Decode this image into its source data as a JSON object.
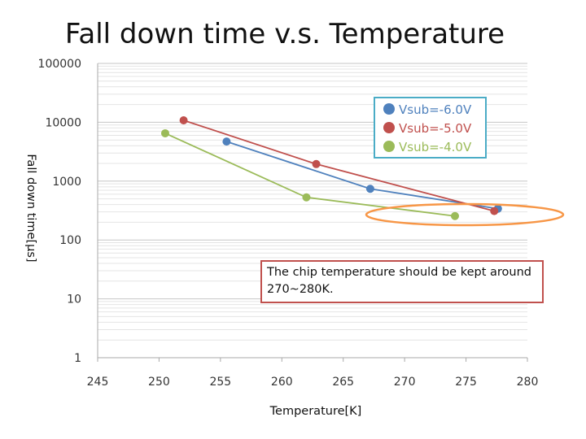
{
  "chart_data": {
    "type": "line",
    "title": "Fall down time v.s. Temperature",
    "xlabel": "Temperature[K]",
    "ylabel": "Fall down time[μs]",
    "xlim": [
      245,
      280
    ],
    "xticks": [
      "245",
      "250",
      "255",
      "260",
      "265",
      "270",
      "275",
      "280"
    ],
    "yscale": "log",
    "ylim": [
      1,
      100000
    ],
    "yticks": [
      "1",
      "10",
      "100",
      "1000",
      "10000",
      "100000"
    ],
    "grid": true,
    "legend_position": "upper-right",
    "series": [
      {
        "name": "Vsub=-6.0V",
        "color": "#4f81bd",
        "x": [
          255.5,
          267.2,
          277.6
        ],
        "y": [
          4700,
          740,
          340
        ]
      },
      {
        "name": "Vsub=-5.0V",
        "color": "#c0504d",
        "x": [
          252.0,
          262.8,
          277.3
        ],
        "y": [
          10800,
          1950,
          310
        ]
      },
      {
        "name": "Vsub=-4.0V",
        "color": "#9bbb59",
        "x": [
          250.5,
          262.0,
          274.1
        ],
        "y": [
          6500,
          530,
          255
        ]
      }
    ],
    "annotations": [
      {
        "text": "The chip temperature should be kept around 270~280K."
      }
    ]
  },
  "colors": {
    "legend_border": "#4bacc6",
    "highlight_ellipse": "#f79646",
    "annotation_border": "#c0504d"
  }
}
